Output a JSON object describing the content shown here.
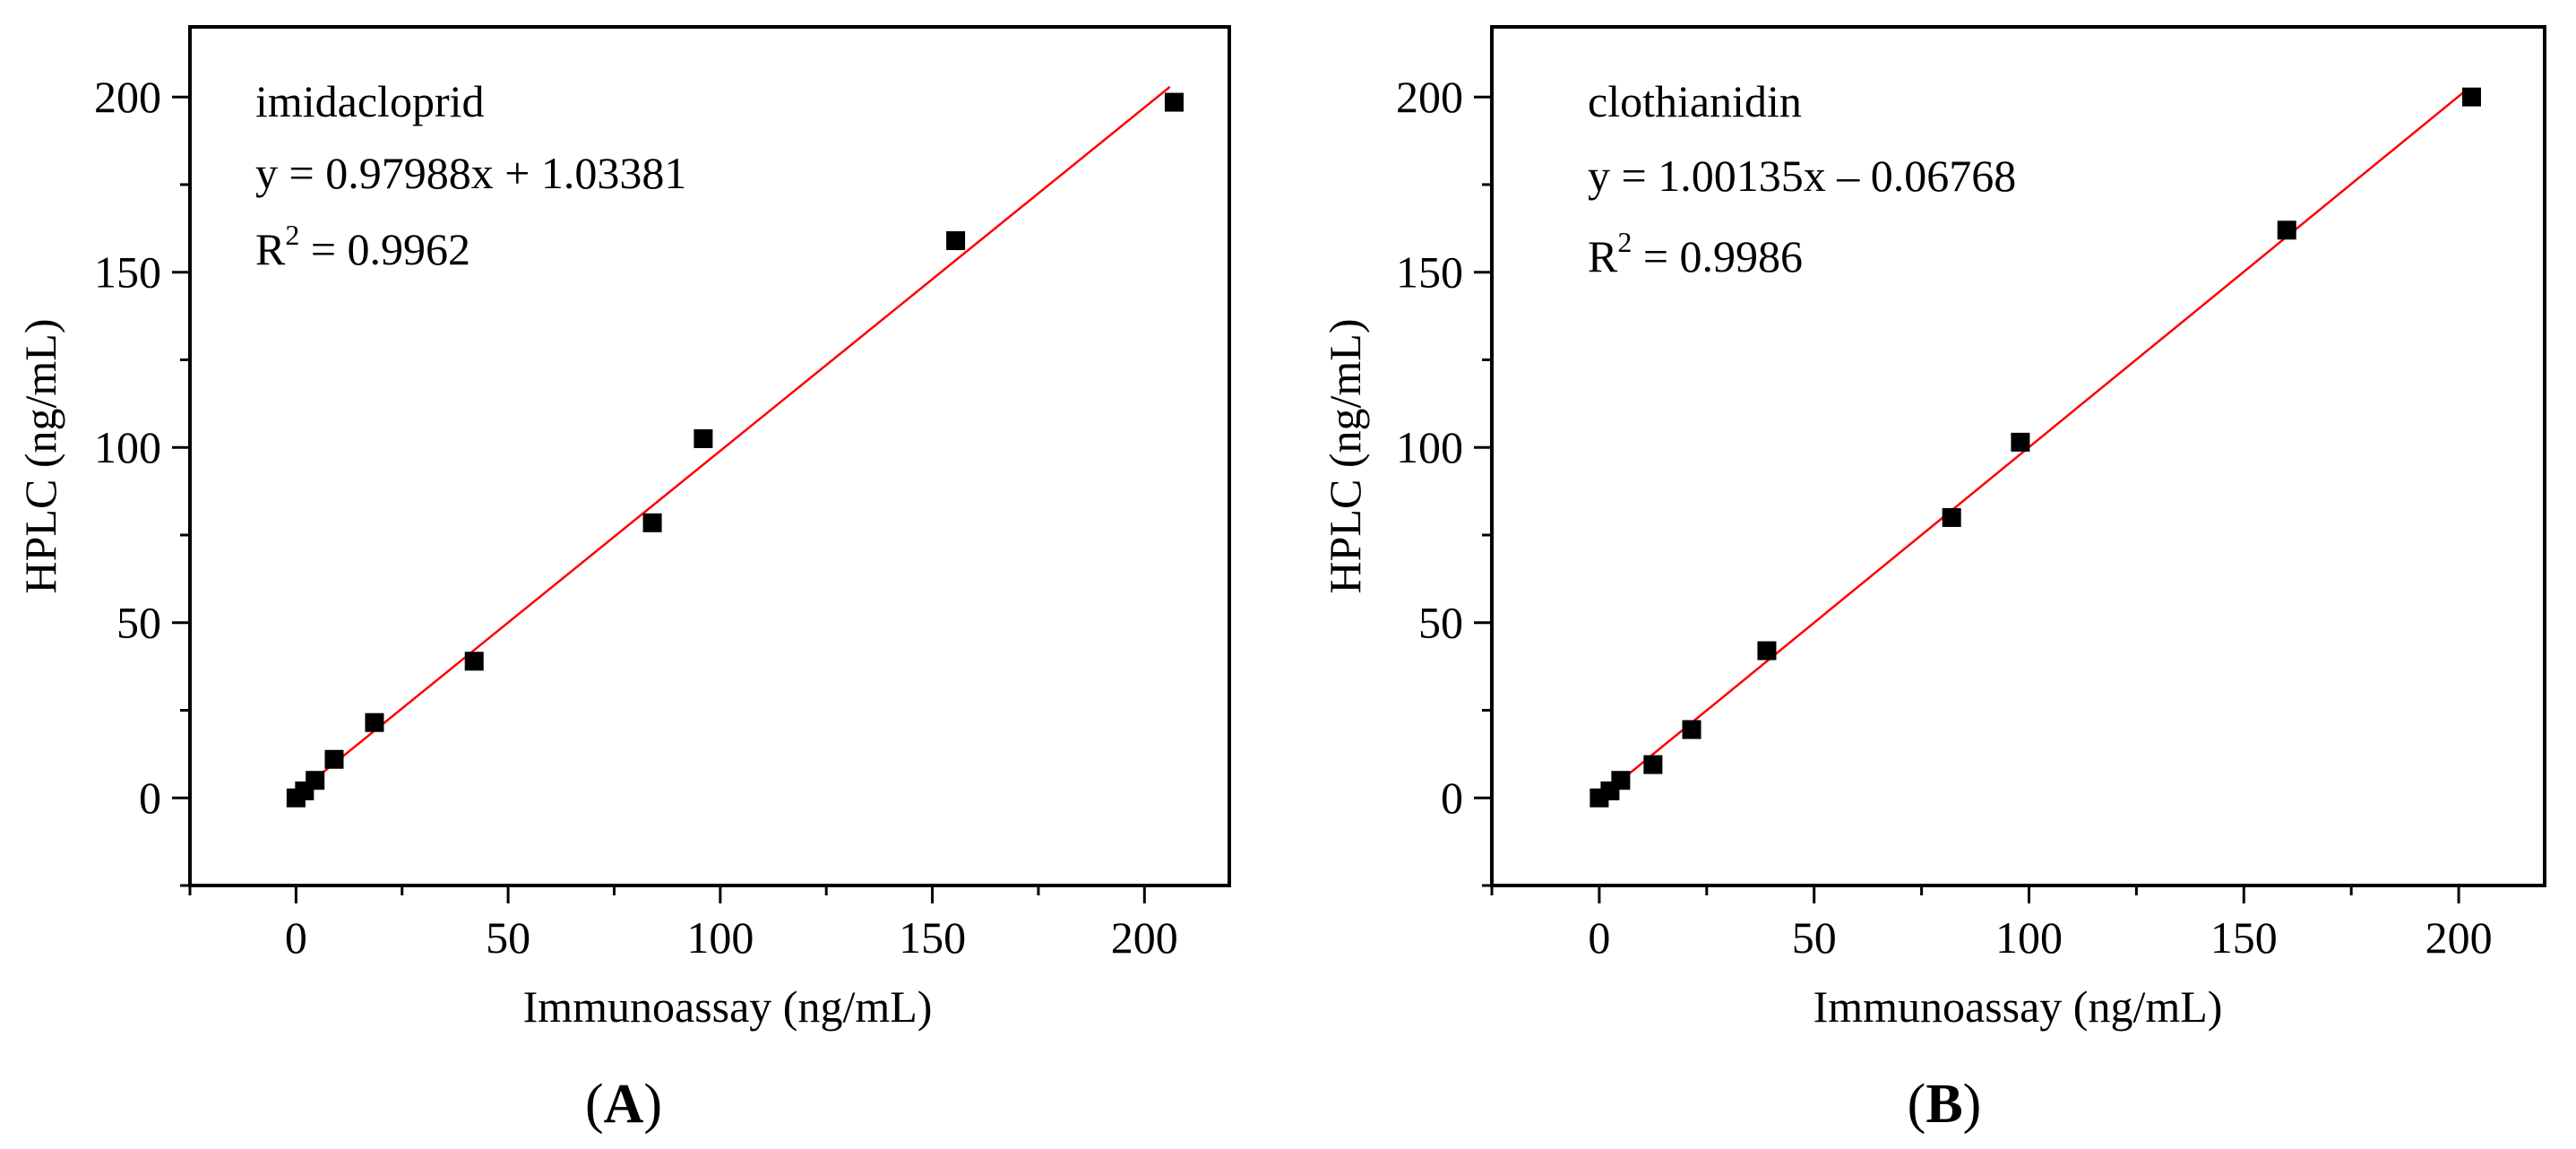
{
  "chart_data": [
    {
      "type": "scatter",
      "panel_label_open": "(",
      "panel_label_letter": "A",
      "panel_label_close": ")",
      "xlabel": "Immunoassay (ng/mL)",
      "ylabel": "HPLC (ng/mL)",
      "xlim": [
        -25,
        220
      ],
      "ylim": [
        -25,
        220
      ],
      "xticks": [
        0,
        50,
        100,
        150,
        200
      ],
      "yticks": [
        0,
        50,
        100,
        150,
        200
      ],
      "annotation": {
        "compound": "imidacloprid",
        "equation": "y = 0.97988x + 1.03381",
        "r2_prefix": "R",
        "r2_sup": "2",
        "r2_value": " = 0.9962"
      },
      "fit": {
        "slope": 0.97988,
        "intercept": 1.03381,
        "x_range": [
          0,
          206
        ],
        "color": "#ff0000"
      },
      "marker_color": "#000000",
      "points": [
        {
          "x": 0,
          "y": 0
        },
        {
          "x": 2,
          "y": 2
        },
        {
          "x": 4.5,
          "y": 5
        },
        {
          "x": 9,
          "y": 11
        },
        {
          "x": 18.5,
          "y": 21.5
        },
        {
          "x": 42,
          "y": 39
        },
        {
          "x": 84,
          "y": 78.5
        },
        {
          "x": 96,
          "y": 102.5
        },
        {
          "x": 155.5,
          "y": 159
        },
        {
          "x": 207,
          "y": 198.5
        }
      ]
    },
    {
      "type": "scatter",
      "panel_label_open": "(",
      "panel_label_letter": "B",
      "panel_label_close": ")",
      "xlabel": "Immunoassay (ng/mL)",
      "ylabel": "HPLC (ng/mL)",
      "xlim": [
        -25,
        220
      ],
      "ylim": [
        -25,
        220
      ],
      "xticks": [
        0,
        50,
        100,
        150,
        200
      ],
      "yticks": [
        0,
        50,
        100,
        150,
        200
      ],
      "annotation": {
        "compound": "clothianidin",
        "equation": "y = 1.00135x – 0.06768",
        "r2_prefix": "R",
        "r2_sup": "2",
        "r2_value": " = 0.9986"
      },
      "fit": {
        "slope": 1.00135,
        "intercept": -0.06768,
        "x_range": [
          0,
          202
        ],
        "color": "#ff0000"
      },
      "marker_color": "#000000",
      "points": [
        {
          "x": 0,
          "y": 0
        },
        {
          "x": 2.5,
          "y": 2
        },
        {
          "x": 5,
          "y": 5
        },
        {
          "x": 12.5,
          "y": 9.5
        },
        {
          "x": 21.5,
          "y": 19.5
        },
        {
          "x": 39,
          "y": 42
        },
        {
          "x": 82,
          "y": 80
        },
        {
          "x": 98,
          "y": 101.5
        },
        {
          "x": 160,
          "y": 162
        },
        {
          "x": 203,
          "y": 200
        }
      ]
    }
  ]
}
